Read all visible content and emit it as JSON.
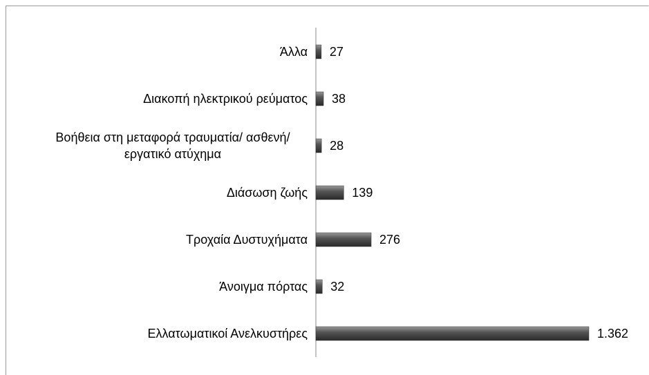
{
  "chart_data": {
    "type": "bar",
    "orientation": "horizontal",
    "categories": [
      "Άλλα",
      "Διακοπή ηλεκτρικού ρεύματος",
      "Βοήθεια στη μεταφορά τραυματία/ ασθενή/ εργατικό ατύχημα",
      "Διάσωση ζωής",
      "Τροχαία Δυστυχήματα",
      "Άνοιγμα πόρτας",
      "Ελλατωματικοί Ανελκυστήρες"
    ],
    "values": [
      27,
      38,
      28,
      139,
      276,
      32,
      1362
    ],
    "value_labels": [
      "27",
      "38",
      "28",
      "139",
      "276",
      "32",
      "1.362"
    ],
    "color": "#555555"
  }
}
